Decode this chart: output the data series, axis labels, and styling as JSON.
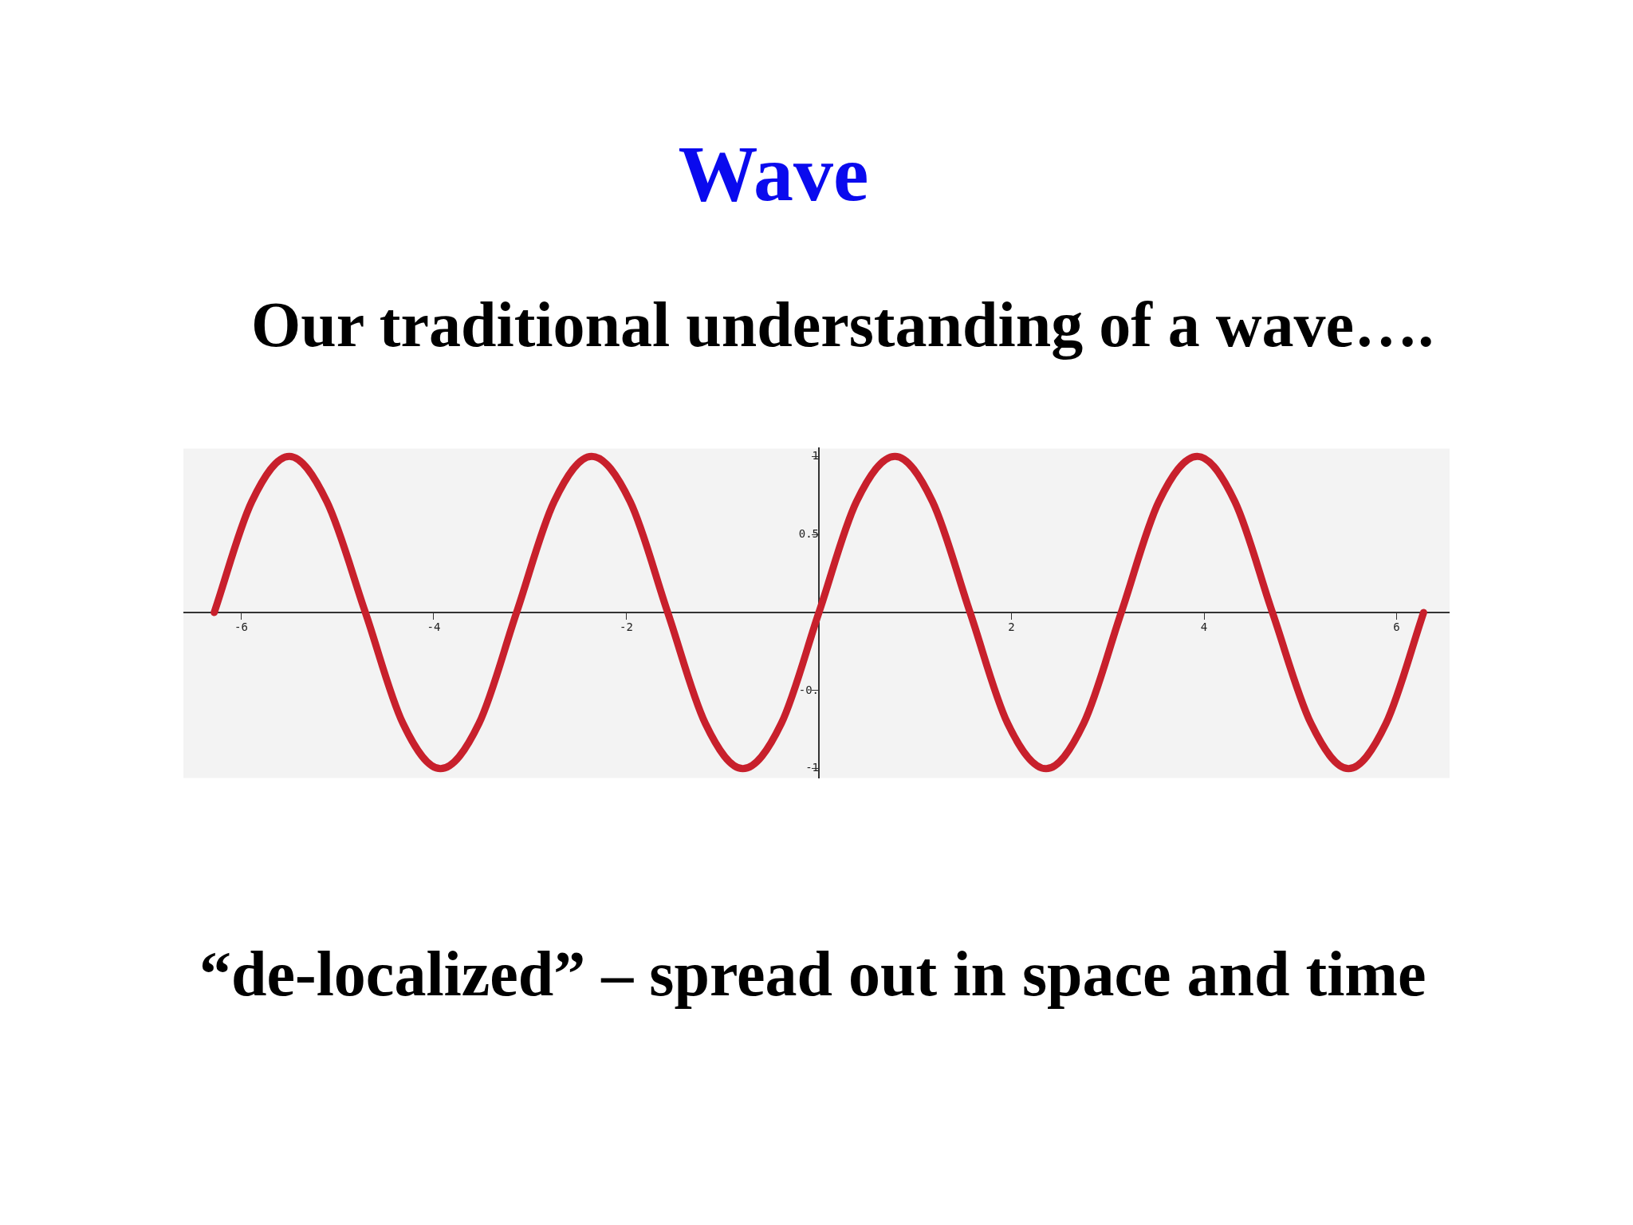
{
  "chart_data": {
    "type": "line",
    "title": "Wave",
    "subtitle": "Our traditional understanding of a wave….",
    "annotations": [
      "“de-localized” – spread out in space and time"
    ],
    "x": [
      -6.28,
      -5.89,
      -5.5,
      -5.11,
      -4.71,
      -4.32,
      -3.93,
      -3.53,
      -3.14,
      -2.75,
      -2.36,
      -1.96,
      -1.57,
      -1.18,
      -0.79,
      -0.39,
      0,
      0.39,
      0.79,
      1.18,
      1.57,
      1.96,
      2.36,
      2.75,
      3.14,
      3.53,
      3.93,
      4.32,
      4.71,
      5.11,
      5.5,
      5.89,
      6.28
    ],
    "series": [
      {
        "color": "#c8202c",
        "values": [
          0,
          0.71,
          1,
          0.71,
          0,
          -0.71,
          -1,
          -0.71,
          0,
          0.71,
          1,
          0.71,
          0,
          -0.71,
          -1,
          -0.71,
          0,
          0.71,
          1,
          0.71,
          0,
          -0.71,
          -1,
          -0.71,
          0,
          0.71,
          1,
          0.71,
          0,
          -0.71,
          -1,
          -0.71,
          0
        ]
      }
    ],
    "xlim": [
      -6.6,
      6.55
    ],
    "ylim": [
      -1.06,
      1.05
    ],
    "xticks": [
      -6,
      -4,
      -2,
      2,
      4,
      6
    ],
    "yticks": [
      1,
      0.5,
      {
        "value": -0.5,
        "label": "-0."
      },
      -1
    ],
    "grid": false
  }
}
